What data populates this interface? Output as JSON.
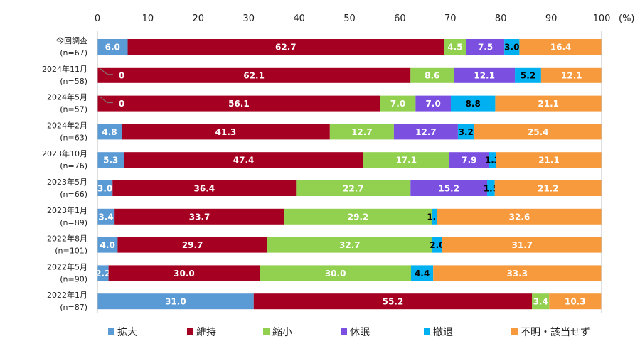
{
  "chart_data": {
    "type": "bar",
    "orientation": "horizontal",
    "stacked": true,
    "unit": "(%)",
    "xlim": [
      0,
      100
    ],
    "xticks": [
      0,
      10,
      20,
      30,
      40,
      50,
      60,
      70,
      80,
      90,
      100
    ],
    "axis_position": "top",
    "grid": false,
    "legend_position": "bottom",
    "categories": [
      [
        "今回調査",
        "(n=67)"
      ],
      [
        "2024年11月",
        "(n=58)"
      ],
      [
        "2024年5月",
        "(n=57)"
      ],
      [
        "2024年2月",
        "(n=63)"
      ],
      [
        "2023年10月",
        "(n=76)"
      ],
      [
        "2023年5月",
        "(n=66)"
      ],
      [
        "2023年1月",
        "(n=89)"
      ],
      [
        "2022年8月",
        "(n=101)"
      ],
      [
        "2022年5月",
        "(n=90)"
      ],
      [
        "2022年1月",
        "(n=87)"
      ]
    ],
    "series": [
      {
        "name": "拡大",
        "color": "#5b9bd5",
        "label_color": "#ffffff",
        "values": [
          6.0,
          0,
          0,
          4.8,
          5.3,
          3.0,
          3.4,
          4.0,
          2.2,
          31.0
        ]
      },
      {
        "name": "維持",
        "color": "#a50021",
        "label_color": "#ffffff",
        "values": [
          62.7,
          62.1,
          56.1,
          41.3,
          47.4,
          36.4,
          33.7,
          29.7,
          30.0,
          55.2
        ]
      },
      {
        "name": "縮小",
        "color": "#92d050",
        "label_color": "#ffffff",
        "values": [
          4.5,
          8.6,
          7.0,
          12.7,
          17.1,
          22.7,
          29.2,
          32.7,
          30.0,
          3.4
        ]
      },
      {
        "name": "休眠",
        "color": "#7b4fe0",
        "label_color": "#ffffff",
        "values": [
          7.5,
          12.1,
          7.0,
          12.7,
          7.9,
          15.2,
          0,
          0,
          0,
          0
        ]
      },
      {
        "name": "撤退",
        "color": "#00b0f0",
        "label_color": "#000000",
        "values": [
          3.0,
          5.2,
          8.8,
          3.2,
          1.3,
          1.5,
          1.1,
          2.0,
          4.4,
          0
        ]
      },
      {
        "name": "不明・該当せず",
        "color": "#f79a3e",
        "label_color": "#ffffff",
        "values": [
          16.4,
          12.1,
          21.1,
          25.4,
          21.1,
          21.2,
          32.6,
          31.7,
          33.3,
          10.3
        ]
      }
    ],
    "zero_labels": [
      {
        "row": 1,
        "series": 0,
        "text": "0"
      },
      {
        "row": 2,
        "series": 0,
        "text": "0"
      }
    ]
  }
}
